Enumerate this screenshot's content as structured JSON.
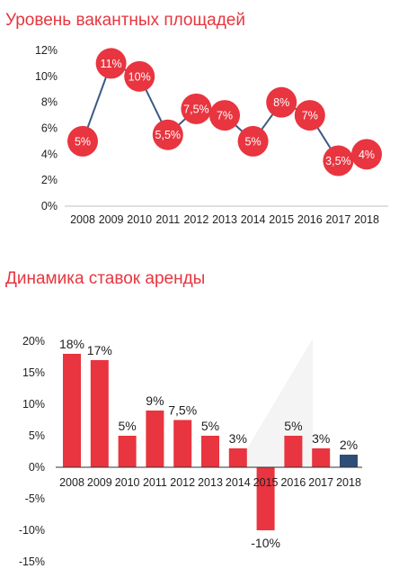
{
  "chart_data": [
    {
      "type": "line",
      "title": "Уровень вакантных площадей",
      "categories": [
        "2008",
        "2009",
        "2010",
        "2011",
        "2012",
        "2013",
        "2014",
        "2015",
        "2016",
        "2017",
        "2018"
      ],
      "values": [
        5,
        11,
        10,
        5.5,
        7.5,
        7,
        5,
        8,
        7,
        3.5,
        4
      ],
      "data_labels": [
        "5%",
        "11%",
        "10%",
        "5,5%",
        "7,5%",
        "7%",
        "5%",
        "8%",
        "7%",
        "3,5%",
        "4%"
      ],
      "y_ticks": [
        "0%",
        "2%",
        "4%",
        "6%",
        "8%",
        "10%",
        "12%"
      ],
      "ylim": [
        0,
        12
      ],
      "grid": false,
      "colors": {
        "marker": "#e8353f",
        "line": "#3b5a84",
        "marker_text": "#ffffff"
      }
    },
    {
      "type": "bar",
      "title": "Динамика ставок аренды",
      "categories": [
        "2008",
        "2009",
        "2010",
        "2011",
        "2012",
        "2013",
        "2014",
        "2015",
        "2016",
        "2017",
        "2018"
      ],
      "values": [
        18,
        17,
        5,
        9,
        7.5,
        5,
        3,
        -10,
        5,
        3,
        2
      ],
      "data_labels": [
        "18%",
        "17%",
        "5%",
        "9%",
        "7,5%",
        "5%",
        "3%",
        "-10%",
        "5%",
        "3%",
        "2%"
      ],
      "y_ticks": [
        "20%",
        "15%",
        "10%",
        "5%",
        "0%",
        "-5%",
        "-10%",
        "-15%"
      ],
      "ylim": [
        -15,
        20
      ],
      "grid": false,
      "colors": {
        "bar": "#e8353f",
        "last_bar": "#2e4d77",
        "axis": "#333333"
      }
    }
  ]
}
